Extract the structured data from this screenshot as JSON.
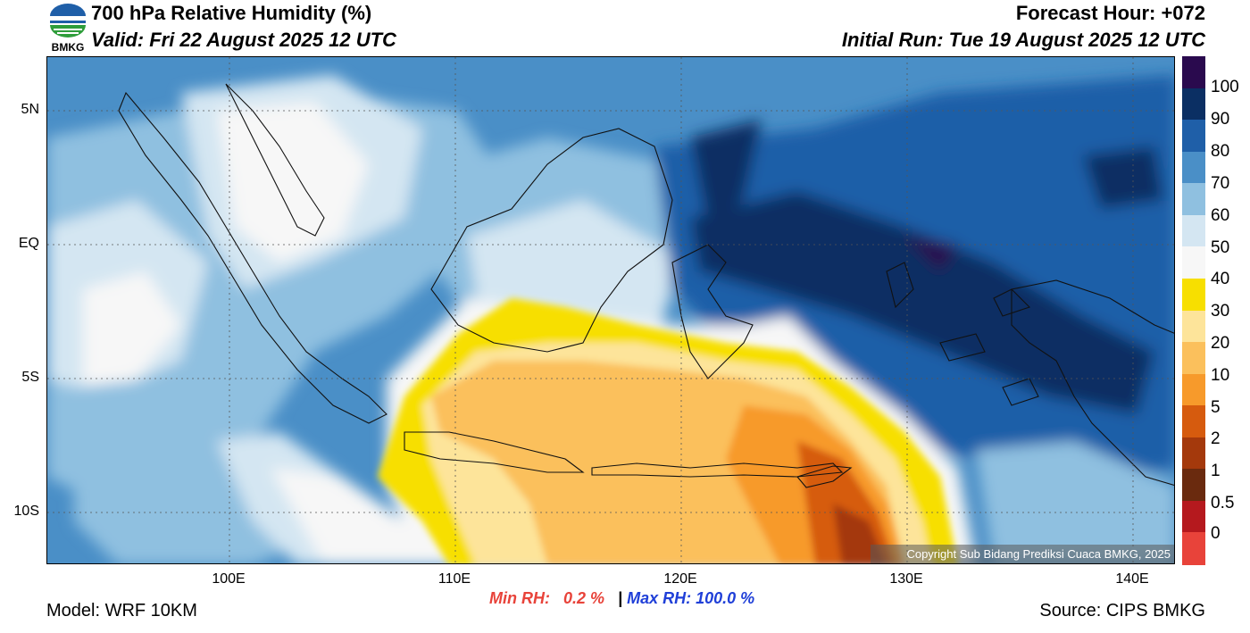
{
  "header": {
    "title": "700 hPa Relative Humidity (%)",
    "valid": "Valid: Fri 22 August 2025 12 UTC",
    "forecast_hour": "Forecast Hour: +072",
    "initial_run": "Initial Run: Tue 19 August 2025 12 UTC",
    "logo_text": "BMKG"
  },
  "map": {
    "lat_labels": [
      "5N",
      "EQ",
      "5S",
      "10S"
    ],
    "lon_labels": [
      "100E",
      "110E",
      "120E",
      "130E",
      "140E"
    ],
    "copyright": "Copyright Sub Bidang Prediksi Cuaca BMKG, 2025"
  },
  "legend": {
    "labels": [
      "100",
      "90",
      "80",
      "70",
      "60",
      "50",
      "40",
      "30",
      "20",
      "10",
      "5",
      "2",
      "1",
      "0.5",
      "0"
    ],
    "colors": [
      "#2a0a4e",
      "#0b2f63",
      "#1f5fa8",
      "#4a8fc7",
      "#8fc0e0",
      "#d4e6f2",
      "#f7f7f7",
      "#f7df00",
      "#fde49a",
      "#fbc05c",
      "#f79a2b",
      "#d65b0e",
      "#a4390c",
      "#6a2a0e",
      "#b5191e",
      "#e8433a"
    ]
  },
  "stats": {
    "min_label": "Min RH:",
    "min_value": "0.2 %",
    "separator": "|",
    "max_label": "Max RH:",
    "max_value": "100.0 %"
  },
  "footer": {
    "model": "Model: WRF 10KM",
    "source": "Source: CIPS BMKG"
  }
}
